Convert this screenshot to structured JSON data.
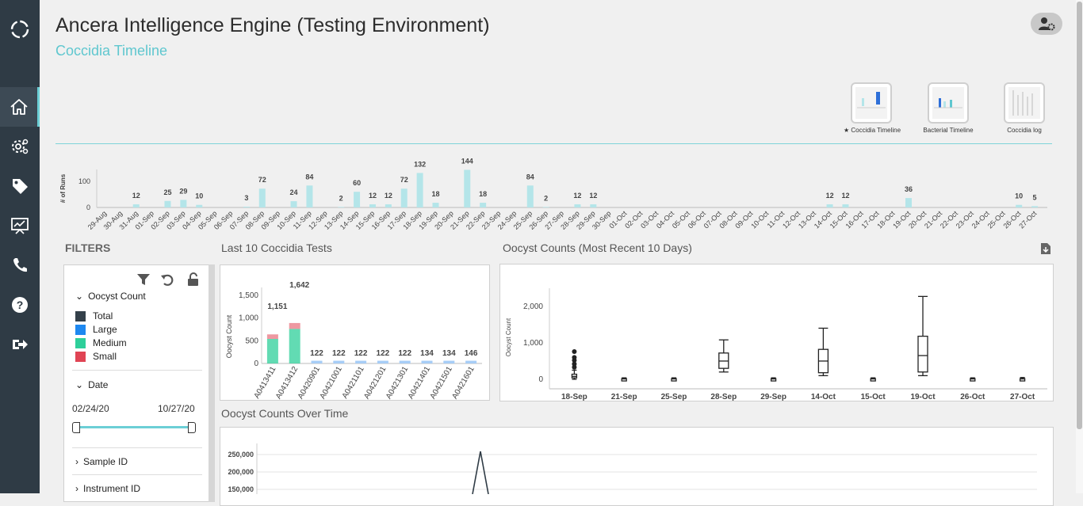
{
  "app": {
    "title": "Ancera Intelligence Engine (Testing Environment)",
    "subtitle": "Coccidia Timeline"
  },
  "sidebar": {
    "items": [
      {
        "name": "logo-icon"
      },
      {
        "name": "home-icon",
        "active": true
      },
      {
        "name": "gear-icon"
      },
      {
        "name": "tag-icon"
      },
      {
        "name": "presentation-icon"
      },
      {
        "name": "phone-icon"
      },
      {
        "name": "help-icon"
      },
      {
        "name": "logout-icon"
      }
    ]
  },
  "header": {
    "user_settings_icon": "user-gear-icon"
  },
  "dashboards": [
    {
      "label": "★ Coccidia Timeline",
      "active": true
    },
    {
      "label": "Bacterial Timeline"
    },
    {
      "label": "Coccidia log"
    }
  ],
  "colors": {
    "accent": "#5fc7cf",
    "sidebar": "#2f3b45",
    "bar": "#b4e5e9",
    "total": "#34404a",
    "large": "#1e88f0",
    "medium": "#2ecf9a",
    "small": "#e04454",
    "test_bar": "#a7cdf7"
  },
  "sections": {
    "filters": "FILTERS",
    "last10": "Last 10 Coccidia Tests",
    "oocyst_recent": "Oocyst Counts (Most Recent 10 Days)",
    "over_time": "Oocyst Counts Over Time"
  },
  "filters": {
    "oocyst_count": {
      "label": "Oocyst Count",
      "items": [
        {
          "label": "Total",
          "color": "#34404a"
        },
        {
          "label": "Large",
          "color": "#1e88f0"
        },
        {
          "label": "Medium",
          "color": "#2ecf9a"
        },
        {
          "label": "Small",
          "color": "#e04454"
        }
      ]
    },
    "date": {
      "label": "Date",
      "start": "02/24/20",
      "end": "10/27/20"
    },
    "sample_id": "Sample ID",
    "instrument_id": "Instrument ID"
  },
  "chart_data": [
    {
      "type": "bar",
      "ylabel": "# of Runs",
      "ylim": [
        0,
        150
      ],
      "yticks": [
        0,
        100
      ],
      "categories": [
        "29-Aug",
        "30-Aug",
        "31-Aug",
        "01-Sep",
        "02-Sep",
        "03-Sep",
        "04-Sep",
        "05-Sep",
        "06-Sep",
        "07-Sep",
        "08-Sep",
        "09-Sep",
        "10-Sep",
        "11-Sep",
        "12-Sep",
        "13-Sep",
        "14-Sep",
        "15-Sep",
        "16-Sep",
        "17-Sep",
        "18-Sep",
        "19-Sep",
        "20-Sep",
        "21-Sep",
        "22-Sep",
        "23-Sep",
        "24-Sep",
        "25-Sep",
        "26-Sep",
        "27-Sep",
        "28-Sep",
        "29-Sep",
        "30-Sep",
        "01-Oct",
        "02-Oct",
        "03-Oct",
        "04-Oct",
        "05-Oct",
        "06-Oct",
        "07-Oct",
        "08-Oct",
        "09-Oct",
        "10-Oct",
        "11-Oct",
        "12-Oct",
        "13-Oct",
        "14-Oct",
        "15-Oct",
        "16-Oct",
        "17-Oct",
        "18-Oct",
        "19-Oct",
        "20-Oct",
        "21-Oct",
        "22-Oct",
        "23-Oct",
        "24-Oct",
        "25-Oct",
        "26-Oct",
        "27-Oct"
      ],
      "values": [
        0,
        0,
        12,
        0,
        25,
        29,
        10,
        0,
        0,
        3,
        72,
        0,
        24,
        84,
        0,
        2,
        60,
        12,
        12,
        72,
        132,
        18,
        0,
        144,
        18,
        0,
        0,
        84,
        2,
        0,
        12,
        12,
        0,
        0,
        0,
        0,
        0,
        0,
        0,
        0,
        0,
        0,
        0,
        0,
        0,
        0,
        12,
        12,
        0,
        0,
        0,
        36,
        0,
        0,
        0,
        0,
        0,
        0,
        10,
        5
      ]
    },
    {
      "type": "bar",
      "title": "Last 10 Coccidia Tests",
      "ylabel": "Oocyst Count",
      "ylim": [
        0,
        1700
      ],
      "yticks": [
        "0",
        "500",
        "1,000",
        "1,500"
      ],
      "categories": [
        "A0413411",
        "A0413412",
        "A0420901",
        "A0421001",
        "A0421101",
        "A0421201",
        "A0421301",
        "A0421401",
        "A0421501",
        "A0421601"
      ],
      "values": [
        1151,
        1642,
        122,
        122,
        122,
        122,
        122,
        134,
        134,
        146
      ],
      "labels": [
        "1,151",
        "1,642",
        "122",
        "122",
        "122",
        "122",
        "122",
        "134",
        "134",
        "146"
      ],
      "stack": {
        "large": [
          540,
          760,
          0,
          0,
          0,
          0,
          0,
          0,
          0,
          0
        ],
        "small": [
          100,
          130,
          0,
          0,
          0,
          0,
          0,
          0,
          0,
          0
        ],
        "large_all": [
          0,
          0,
          60,
          60,
          60,
          60,
          60,
          60,
          60,
          60
        ]
      }
    },
    {
      "type": "box",
      "title": "Oocyst Counts (Most Recent 10 Days)",
      "ylabel": "Oocyst Count",
      "ylim": [
        -150,
        2500
      ],
      "yticks": [
        "0",
        "1,000",
        "2,000"
      ],
      "categories": [
        "18-Sep",
        "21-Sep",
        "25-Sep",
        "28-Sep",
        "29-Sep",
        "14-Oct",
        "15-Oct",
        "19-Oct",
        "26-Oct",
        "27-Oct"
      ],
      "boxes": [
        {
          "min": 0,
          "q1": 40,
          "median": 80,
          "q3": 140,
          "max": 250,
          "outliers": [
            330,
            420,
            520,
            600,
            760
          ]
        },
        {
          "min": -10,
          "q1": 0,
          "median": 10,
          "q3": 20,
          "max": 40
        },
        {
          "min": -10,
          "q1": 0,
          "median": 10,
          "q3": 20,
          "max": 40
        },
        {
          "min": 200,
          "q1": 300,
          "median": 500,
          "q3": 720,
          "max": 1080
        },
        {
          "min": -10,
          "q1": 0,
          "median": 10,
          "q3": 20,
          "max": 40
        },
        {
          "min": 100,
          "q1": 180,
          "median": 500,
          "q3": 820,
          "max": 1400
        },
        {
          "min": -10,
          "q1": 0,
          "median": 10,
          "q3": 20,
          "max": 40
        },
        {
          "min": 100,
          "q1": 200,
          "median": 650,
          "q3": 1180,
          "max": 2270
        },
        {
          "min": -10,
          "q1": 0,
          "median": 10,
          "q3": 20,
          "max": 40
        },
        {
          "min": -10,
          "q1": 0,
          "median": 10,
          "q3": 20,
          "max": 50
        }
      ]
    },
    {
      "type": "line",
      "title": "Oocyst Counts Over Time",
      "yticks": [
        "250,000",
        "200,000",
        "150,000"
      ],
      "ylim": [
        0,
        260000
      ]
    }
  ]
}
